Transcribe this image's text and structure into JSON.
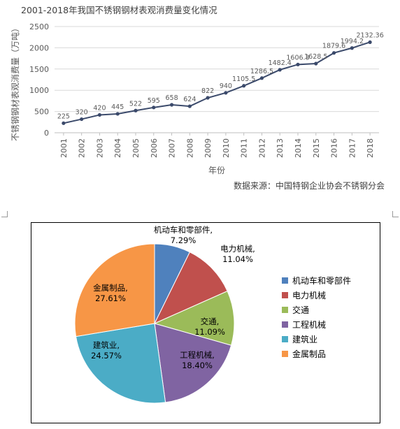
{
  "chart_data": [
    {
      "type": "line",
      "title": "2001-2018年我国不锈钢钢材表观消费量变化情况",
      "xlabel": "年份",
      "ylabel": "不锈钢钢材表观消费量（万吨）",
      "ylim": [
        0,
        2500
      ],
      "yticks": [
        "0",
        "500",
        "1000",
        "1500",
        "2000",
        "2500"
      ],
      "grid": "horizontal",
      "colors": {
        "line": "#3b4a6b",
        "axis_text": "#595959",
        "grid": "#d9d9d9"
      },
      "source": "数据来源：中国特钢企业协会不锈钢分会",
      "x": [
        "2001",
        "2002",
        "2003",
        "2004",
        "2005",
        "2006",
        "2007",
        "2008",
        "2009",
        "2010",
        "2011",
        "2012",
        "2013",
        "2014",
        "2015",
        "2016",
        "2017",
        "2018"
      ],
      "values": [
        225,
        320,
        420,
        445,
        522,
        595,
        658,
        624,
        822,
        940,
        1105.5,
        1286.5,
        1482.4,
        1606.3,
        1628.5,
        1879.6,
        1994.2,
        2132.36
      ],
      "labels": [
        "225",
        "320",
        "420",
        "445",
        "522",
        "595",
        "658",
        "624",
        "822",
        "940",
        "1105.5",
        "1286.5",
        "1482.4",
        "1606.3",
        "1628.5",
        "1879.6",
        "1994.2",
        "2132.36"
      ]
    },
    {
      "type": "pie",
      "series": [
        {
          "name": "机动车和零部件",
          "value": 7.29,
          "label": "机动车和零部件, 7.29%",
          "color": "#4f81bd"
        },
        {
          "name": "电力机械",
          "value": 11.04,
          "label": "电力机械, 11.04%",
          "color": "#c0504d"
        },
        {
          "name": "交通",
          "value": 11.09,
          "label": "交通, 11.09%",
          "color": "#9bbb59"
        },
        {
          "name": "工程机械",
          "value": 18.4,
          "label": "工程机械, 18.40%",
          "color": "#8064a2"
        },
        {
          "name": "建筑业",
          "value": 24.57,
          "label": "建筑业, 24.57%",
          "color": "#4bacc6"
        },
        {
          "name": "金属制品",
          "value": 27.61,
          "label": "金属制品, 27.61%",
          "color": "#f79646"
        }
      ],
      "legend": "right"
    }
  ]
}
